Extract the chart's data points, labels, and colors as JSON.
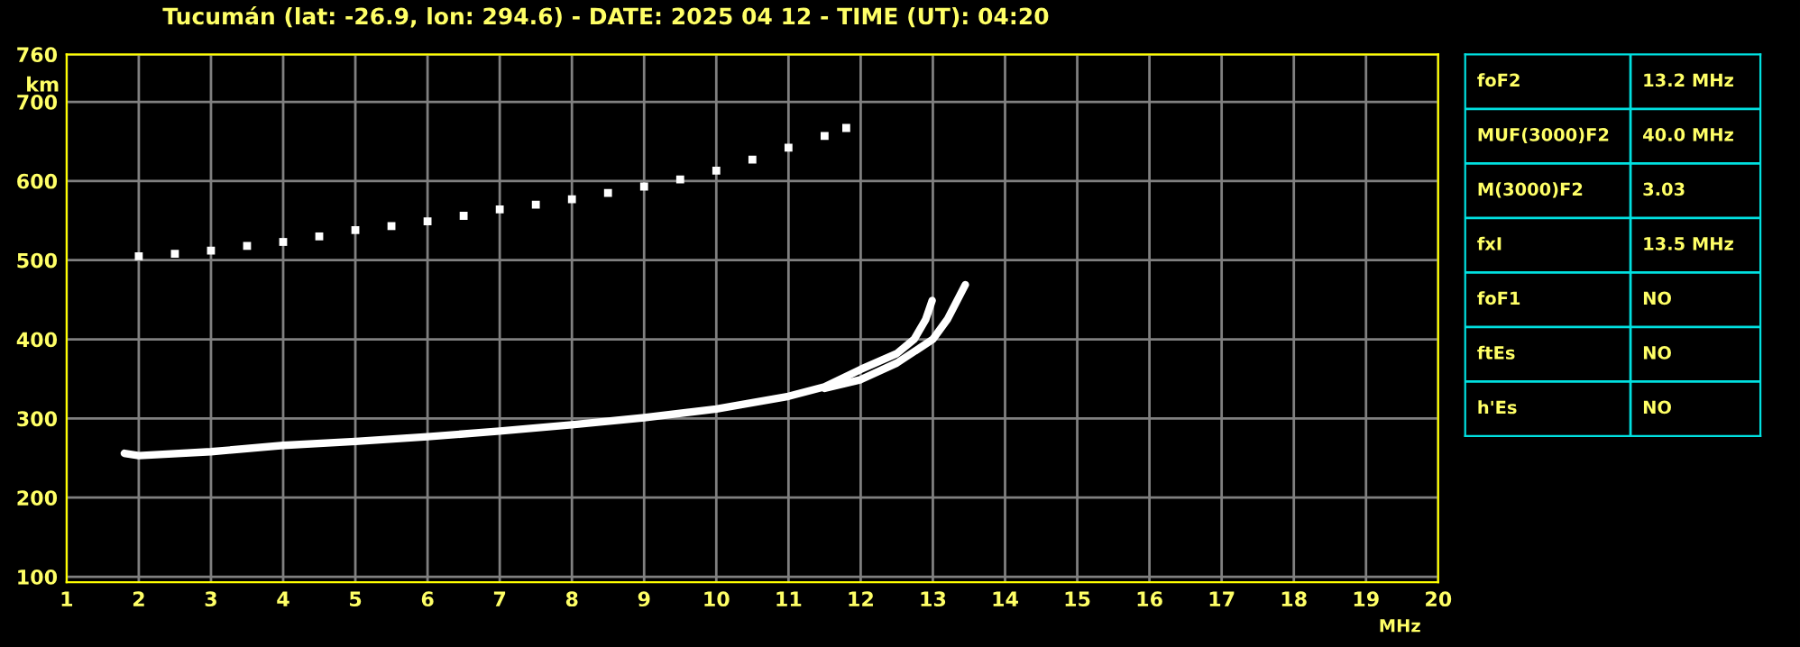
{
  "chart_data": [
    {
      "type": "line",
      "title": "Tucumán (lat: -26.9, lon: 294.6) - DATE: 2025 04 12 - TIME (UT): 04:20",
      "xlabel": "MHz",
      "ylabel": "km",
      "xlim": [
        1,
        20
      ],
      "xticks": [
        1,
        2,
        3,
        4,
        5,
        6,
        7,
        8,
        9,
        10,
        11,
        12,
        13,
        14,
        15,
        16,
        17,
        18,
        19,
        20
      ],
      "ylim": [
        93,
        760
      ],
      "yticks": [
        100,
        200,
        300,
        400,
        500,
        600,
        700,
        760
      ],
      "grid": true,
      "legend": false,
      "series": [
        {
          "color": "#ffffff",
          "x": [
            1.8,
            2,
            3,
            4,
            5,
            6,
            7,
            8,
            9,
            10,
            11,
            11.5,
            12,
            12.5,
            12.74,
            12.9,
            12.99
          ],
          "values": [
            256,
            253,
            258,
            266,
            271,
            277,
            284,
            292,
            301,
            312,
            328,
            340,
            362,
            382,
            400,
            425,
            449
          ]
        },
        {
          "color": "#ffffff",
          "x": [
            11.5,
            12,
            12.5,
            13,
            13.2,
            13.45
          ],
          "values": [
            338,
            349,
            370,
            400,
            425,
            469
          ]
        },
        {
          "type": "scatter",
          "marker": "square",
          "color": "#ffffff",
          "x": [
            2,
            2.5,
            3,
            3.5,
            4,
            4.5,
            5,
            5.5,
            6,
            6.5,
            7,
            7.5,
            8,
            8.5,
            9,
            9.5,
            10,
            10.5,
            11,
            11.5,
            11.8
          ],
          "values": [
            505,
            508,
            512,
            518,
            523,
            530,
            538,
            543,
            549,
            556,
            564,
            570,
            577,
            585,
            593,
            602,
            613,
            627,
            642,
            657,
            667
          ]
        }
      ]
    },
    {
      "type": "other",
      "annotations": [
        "foF2",
        "13.2 MHz",
        "MUF(3000)F2",
        "40.0 MHz",
        "M(3000)F2",
        "3.03",
        "fxI",
        "13.5 MHz",
        "foF1",
        "NO",
        "ftEs",
        "NO",
        "h'Es",
        "NO"
      ]
    }
  ]
}
